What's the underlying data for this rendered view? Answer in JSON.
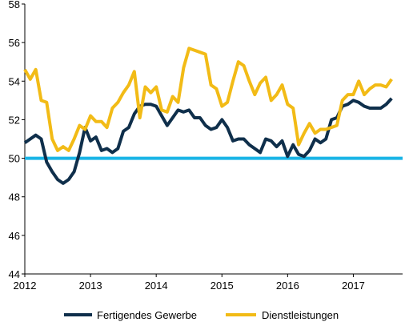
{
  "chart_data": {
    "type": "line",
    "title": "",
    "xlabel": "",
    "ylabel": "",
    "ylim": [
      44,
      58
    ],
    "yticks": [
      "44",
      "46",
      "48",
      "50",
      "52",
      "54",
      "56",
      "58"
    ],
    "xlim": [
      2012.0,
      2017.75
    ],
    "xticks": [
      "2012",
      "2013",
      "2014",
      "2015",
      "2016",
      "2017"
    ],
    "grid": false,
    "legend_position": "bottom",
    "reference_line": {
      "value": 50,
      "color": "#19b4e6"
    },
    "x": [
      2012.0,
      2012.083,
      2012.167,
      2012.25,
      2012.333,
      2012.417,
      2012.5,
      2012.583,
      2012.667,
      2012.75,
      2012.833,
      2012.917,
      2013.0,
      2013.083,
      2013.167,
      2013.25,
      2013.333,
      2013.417,
      2013.5,
      2013.583,
      2013.667,
      2013.75,
      2013.833,
      2013.917,
      2014.0,
      2014.083,
      2014.167,
      2014.25,
      2014.333,
      2014.417,
      2014.5,
      2014.583,
      2014.667,
      2014.75,
      2014.833,
      2014.917,
      2015.0,
      2015.083,
      2015.167,
      2015.25,
      2015.333,
      2015.417,
      2015.5,
      2015.583,
      2015.667,
      2015.75,
      2015.833,
      2015.917,
      2016.0,
      2016.083,
      2016.167,
      2016.25,
      2016.333,
      2016.417,
      2016.5,
      2016.583,
      2016.667,
      2016.75,
      2016.833,
      2016.917,
      2017.0,
      2017.083,
      2017.167,
      2017.25,
      2017.333,
      2017.417,
      2017.5,
      2017.583
    ],
    "series": [
      {
        "name": "Fertigendes Gewerbe",
        "color": "#0f2f4b",
        "values": [
          50.8,
          51.0,
          51.2,
          51.0,
          49.8,
          49.3,
          48.9,
          48.7,
          48.9,
          49.3,
          50.3,
          51.6,
          50.9,
          51.1,
          50.4,
          50.5,
          50.3,
          50.5,
          51.4,
          51.6,
          52.3,
          52.7,
          52.8,
          52.8,
          52.7,
          52.2,
          51.7,
          52.1,
          52.5,
          52.4,
          52.5,
          52.1,
          52.1,
          51.7,
          51.5,
          51.6,
          52.0,
          51.6,
          50.9,
          51.0,
          51.0,
          50.7,
          50.5,
          50.3,
          51.0,
          50.9,
          50.6,
          50.9,
          50.1,
          50.7,
          50.2,
          50.1,
          50.4,
          51.0,
          50.8,
          51.0,
          52.0,
          52.1,
          52.7,
          52.8,
          53.0,
          52.9,
          52.7,
          52.6,
          52.6,
          52.6,
          52.8,
          53.1
        ]
      },
      {
        "name": "Dienstleistungen",
        "color": "#f2bb16",
        "values": [
          54.6,
          54.1,
          54.6,
          53.0,
          52.9,
          51.0,
          50.4,
          50.6,
          50.4,
          51.0,
          51.7,
          51.5,
          52.2,
          51.9,
          51.9,
          51.6,
          52.6,
          52.9,
          53.4,
          53.8,
          54.5,
          52.1,
          53.7,
          53.4,
          53.7,
          52.5,
          52.4,
          53.2,
          52.9,
          54.7,
          55.7,
          55.6,
          55.5,
          55.4,
          53.8,
          53.6,
          52.7,
          52.9,
          54.0,
          55.0,
          54.8,
          54.0,
          53.3,
          53.9,
          54.2,
          53.0,
          53.3,
          53.8,
          52.8,
          52.6,
          50.7,
          51.3,
          51.8,
          51.3,
          51.5,
          51.5,
          51.6,
          51.7,
          53.0,
          53.3,
          53.3,
          54.0,
          53.3,
          53.6,
          53.8,
          53.8,
          53.7,
          54.1
        ]
      }
    ]
  }
}
